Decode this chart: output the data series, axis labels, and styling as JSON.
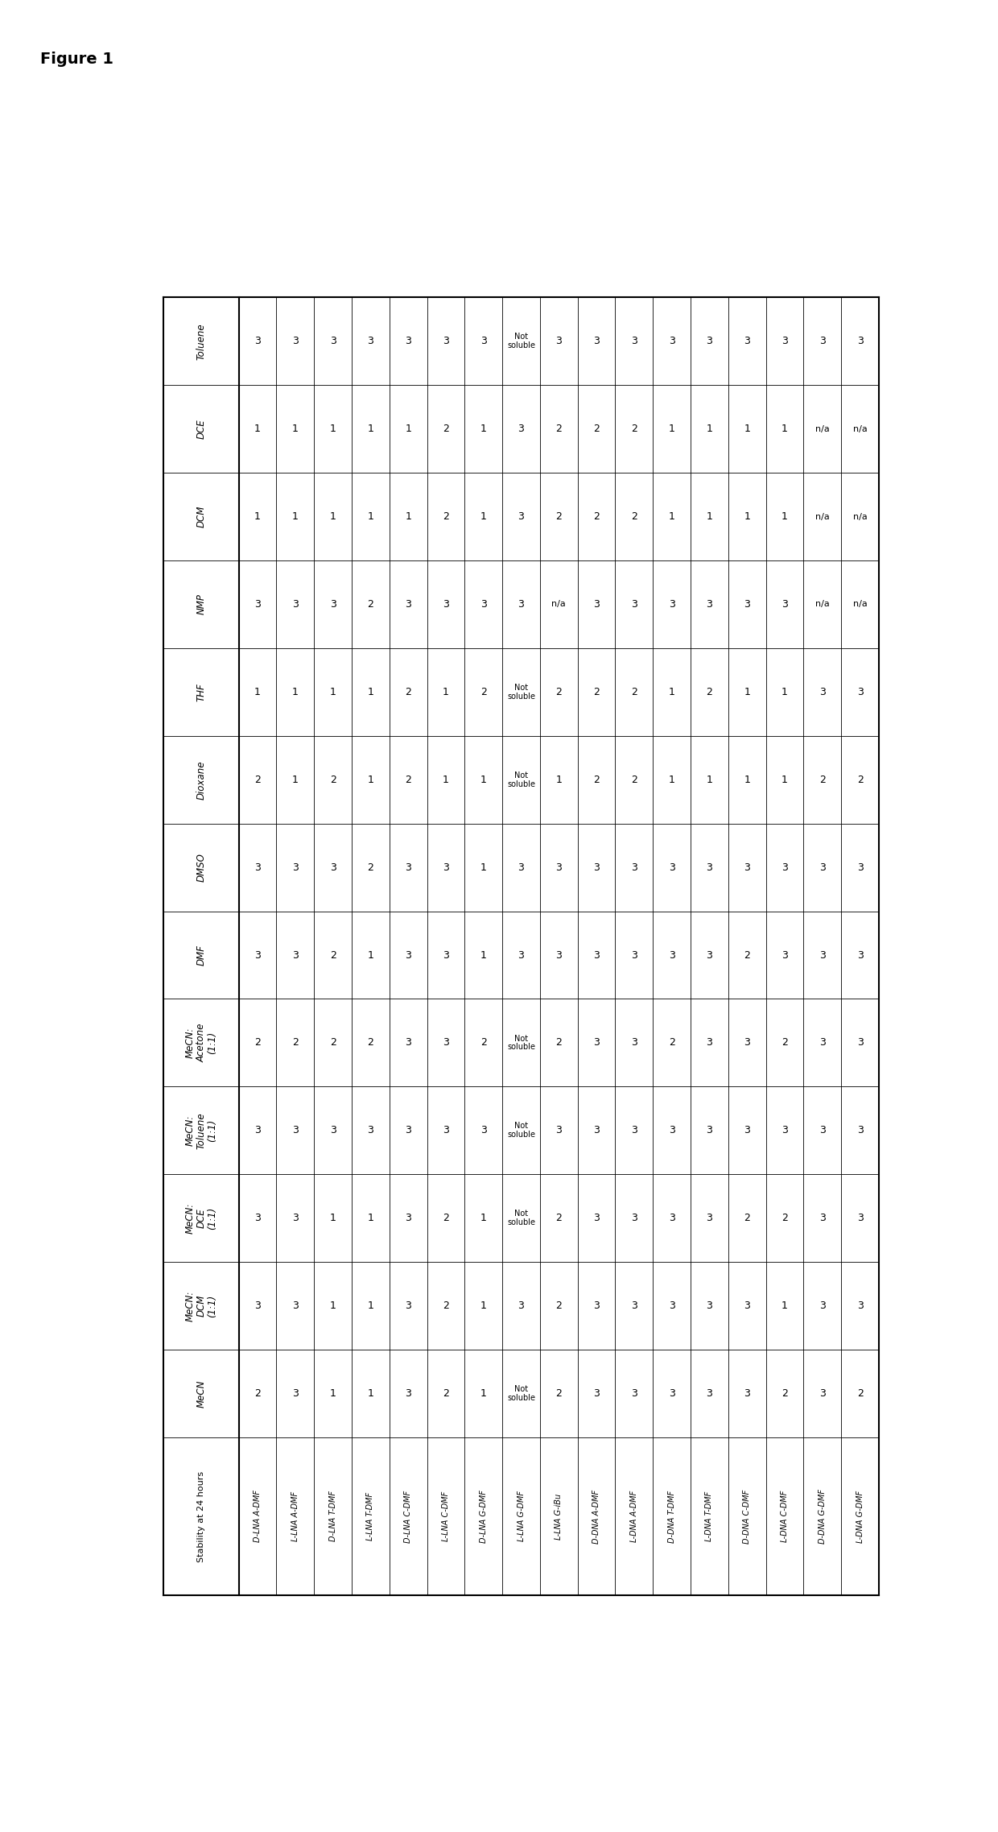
{
  "title": "Figure 1",
  "row_headers": [
    "Toluene",
    "DCE",
    "DCM",
    "NMP",
    "THF",
    "Dioxane",
    "DMSO",
    "DMF",
    "MeCN:\nAcetone\n(1:1)",
    "MeCN:\nToluene\n(1:1)",
    "MeCN:\nDCE\n(1:1)",
    "MeCN:\nDCM\n(1:1)",
    "MeCN",
    "Stability at 24 hours"
  ],
  "col_headers": [
    "D-LNA A-DMF",
    "L-LNA A-DMF",
    "D-LNA T-DMF",
    "L-LNA T-DMF",
    "D-LNA C-DMF",
    "L-LNA C-DMF",
    "D-LNA G-DMF",
    "L-LNA G-DMF",
    "L-LNA G-iBu",
    "D-DNA A-DMF",
    "L-DNA A-DMF",
    "D-DNA T-DMF",
    "L-DNA T-DMF",
    "D-DNA C-DMF",
    "L-DNA C-DMF",
    "D-DNA G-DMF",
    "L-DNA G-DMF"
  ],
  "table_data": [
    [
      "3",
      "3",
      "3",
      "3",
      "3",
      "3",
      "3",
      "Not\nsoluble",
      "3",
      "3",
      "3",
      "3",
      "3",
      "3",
      "3",
      "3",
      "3"
    ],
    [
      "1",
      "1",
      "1",
      "1",
      "1",
      "2",
      "1",
      "3",
      "2",
      "2",
      "2",
      "1",
      "1",
      "1",
      "1",
      "n/a",
      "n/a"
    ],
    [
      "1",
      "1",
      "1",
      "1",
      "1",
      "2",
      "1",
      "3",
      "2",
      "2",
      "2",
      "1",
      "1",
      "1",
      "1",
      "n/a",
      "n/a"
    ],
    [
      "3",
      "3",
      "3",
      "2",
      "3",
      "3",
      "3",
      "3",
      "n/a",
      "3",
      "3",
      "3",
      "3",
      "3",
      "3",
      "n/a",
      "n/a"
    ],
    [
      "1",
      "1",
      "1",
      "1",
      "2",
      "1",
      "2",
      "Not\nsoluble",
      "2",
      "2",
      "2",
      "1",
      "2",
      "1",
      "1",
      "3",
      "3"
    ],
    [
      "2",
      "1",
      "2",
      "1",
      "2",
      "1",
      "1",
      "Not\nsoluble",
      "1",
      "2",
      "2",
      "1",
      "1",
      "1",
      "1",
      "2",
      "2"
    ],
    [
      "3",
      "3",
      "3",
      "2",
      "3",
      "3",
      "1",
      "3",
      "3",
      "3",
      "3",
      "3",
      "3",
      "3",
      "3",
      "3",
      "3"
    ],
    [
      "3",
      "3",
      "2",
      "1",
      "3",
      "3",
      "1",
      "3",
      "3",
      "3",
      "3",
      "3",
      "3",
      "2",
      "3",
      "3",
      "3"
    ],
    [
      "2",
      "2",
      "2",
      "2",
      "3",
      "3",
      "2",
      "Not\nsoluble",
      "2",
      "3",
      "3",
      "2",
      "3",
      "3",
      "2",
      "3",
      "3"
    ],
    [
      "3",
      "3",
      "3",
      "3",
      "3",
      "3",
      "3",
      "Not\nsoluble",
      "3",
      "3",
      "3",
      "3",
      "3",
      "3",
      "3",
      "3",
      "3"
    ],
    [
      "3",
      "3",
      "1",
      "1",
      "3",
      "2",
      "1",
      "Not\nsoluble",
      "2",
      "3",
      "3",
      "3",
      "3",
      "2",
      "2",
      "3",
      "3"
    ],
    [
      "3",
      "3",
      "1",
      "1",
      "3",
      "2",
      "1",
      "3",
      "2",
      "3",
      "3",
      "3",
      "3",
      "3",
      "1",
      "3",
      "3"
    ],
    [
      "2",
      "3",
      "1",
      "1",
      "3",
      "2",
      "1",
      "Not\nsoluble",
      "2",
      "3",
      "3",
      "3",
      "3",
      "2",
      "1",
      "3",
      "3"
    ]
  ],
  "fig_width": 12.4,
  "fig_height": 22.75,
  "background": "#ffffff",
  "border_color": "#000000",
  "text_color": "#000000"
}
